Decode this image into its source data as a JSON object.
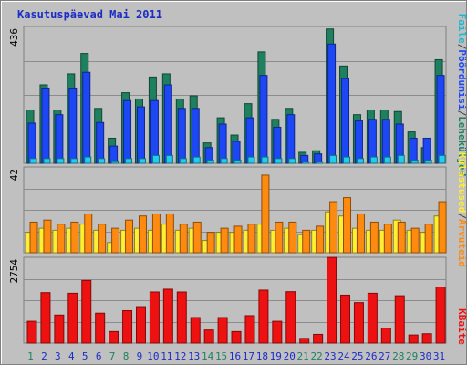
{
  "title": "Kasutuspäevad Mai 2011",
  "colors": {
    "visits": "#1f8060",
    "pages": "#1d47f4",
    "hits": "#22ccee",
    "files": "#4fd4e8",
    "unique_visitors": "#ffee33",
    "sessions": "#ff8a10",
    "kbytes": "#ee1111",
    "label_files": "#1bb8cf",
    "label_pages": "#1d47f4",
    "label_visits": "#1f8060",
    "weekend_day": "#1f8060",
    "weekday": "#1b2cc5"
  },
  "chart_data": [
    {
      "type": "bar",
      "panel": "top",
      "ymax_label": "436",
      "ylim": [
        0,
        436
      ],
      "side_label_parts": [
        "Faile",
        "Pöördumisi",
        "Leheküljed"
      ],
      "side_label_separator": "/",
      "categories": [
        "1",
        "2",
        "3",
        "4",
        "5",
        "6",
        "7",
        "8",
        "9",
        "10",
        "11",
        "12",
        "13",
        "14",
        "15",
        "16",
        "17",
        "18",
        "19",
        "20",
        "21",
        "22",
        "23",
        "24",
        "25",
        "26",
        "27",
        "28",
        "29",
        "30",
        "31"
      ],
      "series": [
        {
          "name": "Pöördumisi",
          "values": [
            170,
            250,
            170,
            285,
            350,
            175,
            80,
            225,
            205,
            275,
            285,
            205,
            215,
            65,
            145,
            90,
            190,
            355,
            140,
            175,
            35,
            40,
            428,
            310,
            155,
            170,
            170,
            165,
            100,
            50,
            330
          ]
        },
        {
          "name": "Faile",
          "values": [
            128,
            240,
            155,
            240,
            290,
            130,
            55,
            200,
            180,
            200,
            250,
            175,
            175,
            50,
            125,
            70,
            145,
            280,
            115,
            155,
            25,
            30,
            380,
            270,
            135,
            140,
            140,
            125,
            80,
            80,
            280
          ]
        },
        {
          "name": "Leheküljed",
          "values": [
            15,
            15,
            15,
            15,
            20,
            15,
            8,
            15,
            15,
            25,
            25,
            15,
            20,
            10,
            15,
            10,
            20,
            20,
            15,
            15,
            5,
            5,
            25,
            20,
            15,
            20,
            20,
            25,
            10,
            10,
            25
          ]
        }
      ]
    },
    {
      "type": "bar",
      "panel": "middle",
      "ymax_label": "42",
      "ylim": [
        0,
        42
      ],
      "side_label_parts": [
        "Külastused",
        "Arvuteid"
      ],
      "side_label_separator": "/",
      "categories": [
        "1",
        "2",
        "3",
        "4",
        "5",
        "6",
        "7",
        "8",
        "9",
        "10",
        "11",
        "12",
        "13",
        "14",
        "15",
        "16",
        "17",
        "18",
        "19",
        "20",
        "21",
        "22",
        "23",
        "24",
        "25",
        "26",
        "27",
        "28",
        "29",
        "30",
        "31"
      ],
      "series": [
        {
          "name": "Arvuteid",
          "values": [
            10,
            12,
            11,
            12,
            14,
            11,
            5,
            11,
            12,
            11,
            14,
            11,
            12,
            6,
            10,
            10,
            11,
            14,
            11,
            12,
            9,
            11,
            20,
            18,
            12,
            11,
            11,
            16,
            11,
            10,
            18
          ]
        },
        {
          "name": "Külastused",
          "values": [
            15,
            16,
            14,
            15,
            19,
            14,
            12,
            16,
            18,
            19,
            19,
            14,
            15,
            10,
            12,
            13,
            14,
            38,
            15,
            15,
            11,
            13,
            25,
            27,
            19,
            15,
            14,
            15,
            12,
            14,
            25
          ]
        }
      ]
    },
    {
      "type": "bar",
      "panel": "bottom",
      "ymax_label": "2754",
      "ylim": [
        0,
        2754
      ],
      "side_label_parts": [
        "KBaite"
      ],
      "categories": [
        "1",
        "2",
        "3",
        "4",
        "5",
        "6",
        "7",
        "8",
        "9",
        "10",
        "11",
        "12",
        "13",
        "14",
        "15",
        "16",
        "17",
        "18",
        "19",
        "20",
        "21",
        "22",
        "23",
        "24",
        "25",
        "26",
        "27",
        "28",
        "29",
        "30",
        "31"
      ],
      "series": [
        {
          "name": "KBaite",
          "values": [
            700,
            1620,
            900,
            1600,
            2010,
            960,
            370,
            1040,
            1170,
            1640,
            1730,
            1640,
            820,
            420,
            820,
            370,
            880,
            1700,
            700,
            1650,
            150,
            280,
            2750,
            1540,
            1300,
            1600,
            480,
            1520,
            260,
            300,
            1800
          ]
        }
      ]
    }
  ],
  "x_labels": [
    "1",
    "2",
    "3",
    "4",
    "5",
    "6",
    "7",
    "8",
    "9",
    "10",
    "11",
    "12",
    "13",
    "14",
    "15",
    "16",
    "17",
    "18",
    "19",
    "20",
    "21",
    "22",
    "23",
    "24",
    "25",
    "26",
    "27",
    "28",
    "29",
    "30",
    "31"
  ],
  "weekend_days": [
    "1",
    "7",
    "8",
    "14",
    "15",
    "21",
    "22",
    "28",
    "29"
  ]
}
